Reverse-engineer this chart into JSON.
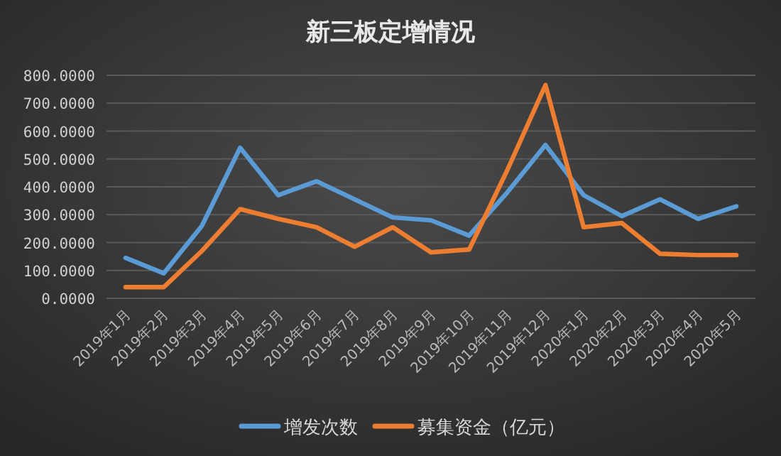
{
  "chart_data": {
    "type": "line",
    "title": "新三板定增情况",
    "categories": [
      "2019年1月",
      "2019年2月",
      "2019年3月",
      "2019年4月",
      "2019年5月",
      "2019年6月",
      "2019年7月",
      "2019年8月",
      "2019年9月",
      "2019年10月",
      "2019年11月",
      "2019年12月",
      "2020年1月",
      "2020年2月",
      "2020年3月",
      "2020年4月",
      "2020年5月"
    ],
    "series": [
      {
        "name": "增发次数",
        "color": "#5b9bd5",
        "values": [
          145,
          90,
          260,
          540,
          370,
          420,
          355,
          290,
          280,
          225,
          380,
          550,
          370,
          295,
          355,
          285,
          330
        ]
      },
      {
        "name": "募集资金（亿元）",
        "color": "#ed7d31",
        "values": [
          40,
          40,
          170,
          320,
          285,
          255,
          185,
          255,
          165,
          175,
          460,
          765,
          255,
          270,
          160,
          155,
          155
        ]
      }
    ],
    "ylim": [
      0,
      800
    ],
    "yticks": [
      {
        "value": 0,
        "label": "0.0000"
      },
      {
        "value": 100,
        "label": "100.0000"
      },
      {
        "value": 200,
        "label": "200.0000"
      },
      {
        "value": 300,
        "label": "300.0000"
      },
      {
        "value": 400,
        "label": "400.0000"
      },
      {
        "value": 500,
        "label": "500.0000"
      },
      {
        "value": 600,
        "label": "600.0000"
      },
      {
        "value": 700,
        "label": "700.0000"
      },
      {
        "value": 800,
        "label": "800.0000"
      }
    ],
    "grid": "y",
    "legend": "bottom",
    "marker": "none",
    "line_style": "solid"
  }
}
